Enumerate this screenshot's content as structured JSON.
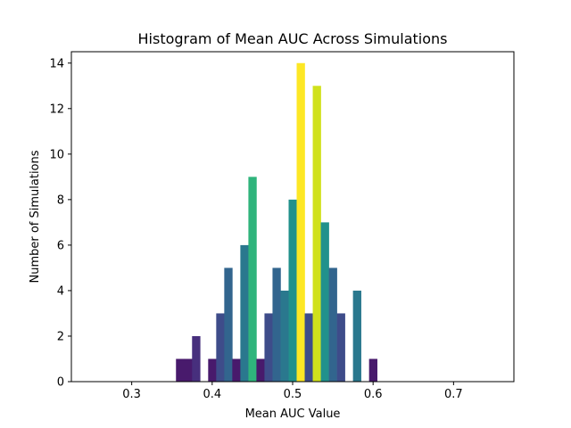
{
  "chart_data": {
    "type": "bar",
    "title": "Histogram of Mean AUC Across Simulations",
    "xlabel": "Mean AUC Value",
    "ylabel": "Number of Simulations",
    "xlim": [
      0.225,
      0.775
    ],
    "ylim": [
      0,
      14.5
    ],
    "grid": false,
    "bin_width": 0.01,
    "x_ticks": [
      0.3,
      0.4,
      0.5,
      0.6,
      0.7
    ],
    "x_tick_labels": [
      "0.3",
      "0.4",
      "0.5",
      "0.6",
      "0.7"
    ],
    "y_ticks": [
      0,
      2,
      4,
      6,
      8,
      10,
      12,
      14
    ],
    "y_tick_labels": [
      "0",
      "2",
      "4",
      "6",
      "8",
      "10",
      "12",
      "14"
    ],
    "colors": {
      "c1": "#481a6c",
      "c2": "#472f7d",
      "c3": "#3e4c8a",
      "c4": "#32658e",
      "c5": "#2a788e",
      "c6": "#21918c",
      "c7": "#22a884",
      "c8": "#2fb47c",
      "c9": "#d0e11c",
      "c10": "#fde725"
    },
    "bins": [
      {
        "x": 0.36,
        "value": 1,
        "color": "#481a6c"
      },
      {
        "x": 0.37,
        "value": 1,
        "color": "#481a6c"
      },
      {
        "x": 0.38,
        "value": 2,
        "color": "#472f7d"
      },
      {
        "x": 0.4,
        "value": 1,
        "color": "#481a6c"
      },
      {
        "x": 0.41,
        "value": 3,
        "color": "#3e4c8a"
      },
      {
        "x": 0.42,
        "value": 5,
        "color": "#32658e"
      },
      {
        "x": 0.43,
        "value": 1,
        "color": "#481a6c"
      },
      {
        "x": 0.44,
        "value": 6,
        "color": "#2a788e"
      },
      {
        "x": 0.45,
        "value": 9,
        "color": "#2fb47c"
      },
      {
        "x": 0.46,
        "value": 1,
        "color": "#481a6c"
      },
      {
        "x": 0.47,
        "value": 3,
        "color": "#3e4c8a"
      },
      {
        "x": 0.48,
        "value": 5,
        "color": "#32658e"
      },
      {
        "x": 0.49,
        "value": 4,
        "color": "#2a788e"
      },
      {
        "x": 0.5,
        "value": 8,
        "color": "#21918c"
      },
      {
        "x": 0.51,
        "value": 14,
        "color": "#fde725"
      },
      {
        "x": 0.52,
        "value": 3,
        "color": "#3e4c8a"
      },
      {
        "x": 0.53,
        "value": 13,
        "color": "#d0e11c"
      },
      {
        "x": 0.54,
        "value": 7,
        "color": "#21918c"
      },
      {
        "x": 0.55,
        "value": 5,
        "color": "#32658e"
      },
      {
        "x": 0.56,
        "value": 3,
        "color": "#3e4c8a"
      },
      {
        "x": 0.58,
        "value": 4,
        "color": "#2a788e"
      },
      {
        "x": 0.6,
        "value": 1,
        "color": "#481a6c"
      }
    ]
  }
}
